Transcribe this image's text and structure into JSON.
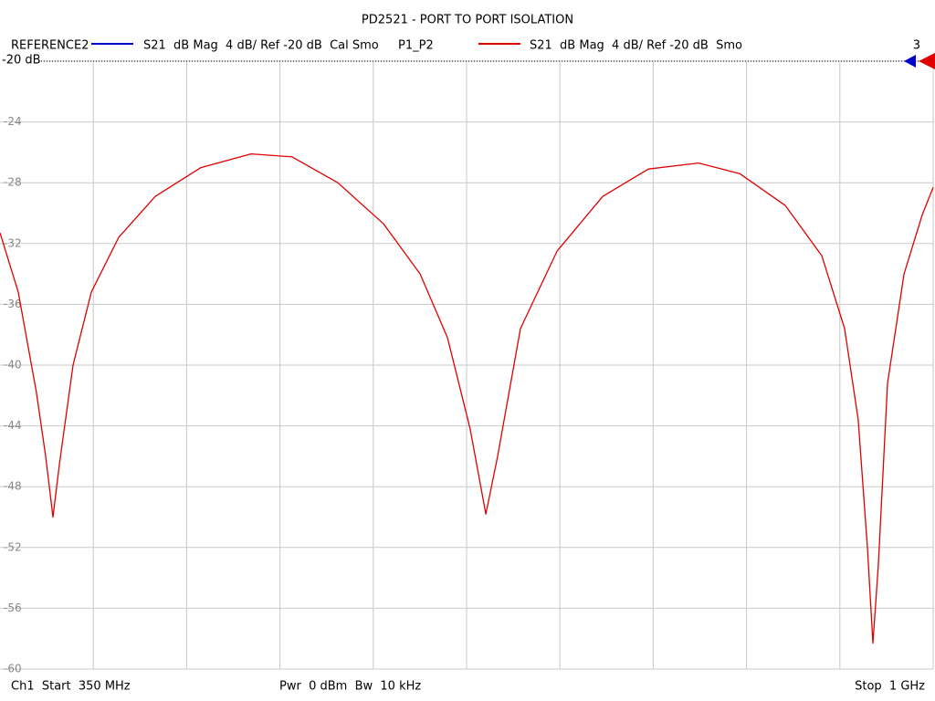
{
  "chart_data": {
    "type": "line",
    "title": "PD2521 - PORT TO PORT ISOLATION",
    "reference_trace": {
      "name": "REFERENCE2",
      "color": "#0000cc",
      "description": "S21  dB Mag  4 dB/ Ref -20 dB  Cal Smo"
    },
    "channel_number": "3",
    "reference_level": {
      "value": -20,
      "label": "-20 dB"
    },
    "start_label": "Ch1  Start  350 MHz",
    "power_label": "Pwr  0 dBm  Bw  10 kHz",
    "stop_label": "Stop  1 GHz",
    "xlim": [
      350,
      1000
    ],
    "xgrid_divisions": 10,
    "ylim": [
      -60,
      -20
    ],
    "yticks": [
      -20,
      -24,
      -28,
      -32,
      -36,
      -40,
      -44,
      -48,
      -52,
      -56,
      -60
    ],
    "grid": true,
    "x": [
      350,
      362.7,
      375.4,
      381.8,
      386.9,
      391.3,
      400.9,
      413.6,
      432.7,
      458.1,
      490,
      524.9,
      553.5,
      585.3,
      617.1,
      642.6,
      661.7,
      677.5,
      688.4,
      696.6,
      712.5,
      738,
      769.8,
      801.6,
      836.6,
      865.2,
      897,
      922.4,
      938.3,
      947.8,
      954.2,
      958,
      961.8,
      968.2,
      979.7,
      992.4,
      1000
    ],
    "series": [
      {
        "name": "P1_P2",
        "description": "S21  dB Mag  4 dB/ Ref -20 dB  Smo",
        "color": "#e00000",
        "values": [
          -31.3,
          -35.2,
          -41.8,
          -46,
          -50,
          -46.6,
          -40,
          -35.2,
          -31.6,
          -28.9,
          -27,
          -26.1,
          -26.3,
          -28,
          -30.7,
          -34,
          -38.2,
          -44.2,
          -49.8,
          -46,
          -37.6,
          -32.5,
          -28.9,
          -27.1,
          -26.7,
          -27.4,
          -29.5,
          -32.8,
          -37.6,
          -43.6,
          -52,
          -58.3,
          -53.2,
          -41.2,
          -34,
          -30.1,
          -28.3
        ]
      }
    ]
  }
}
